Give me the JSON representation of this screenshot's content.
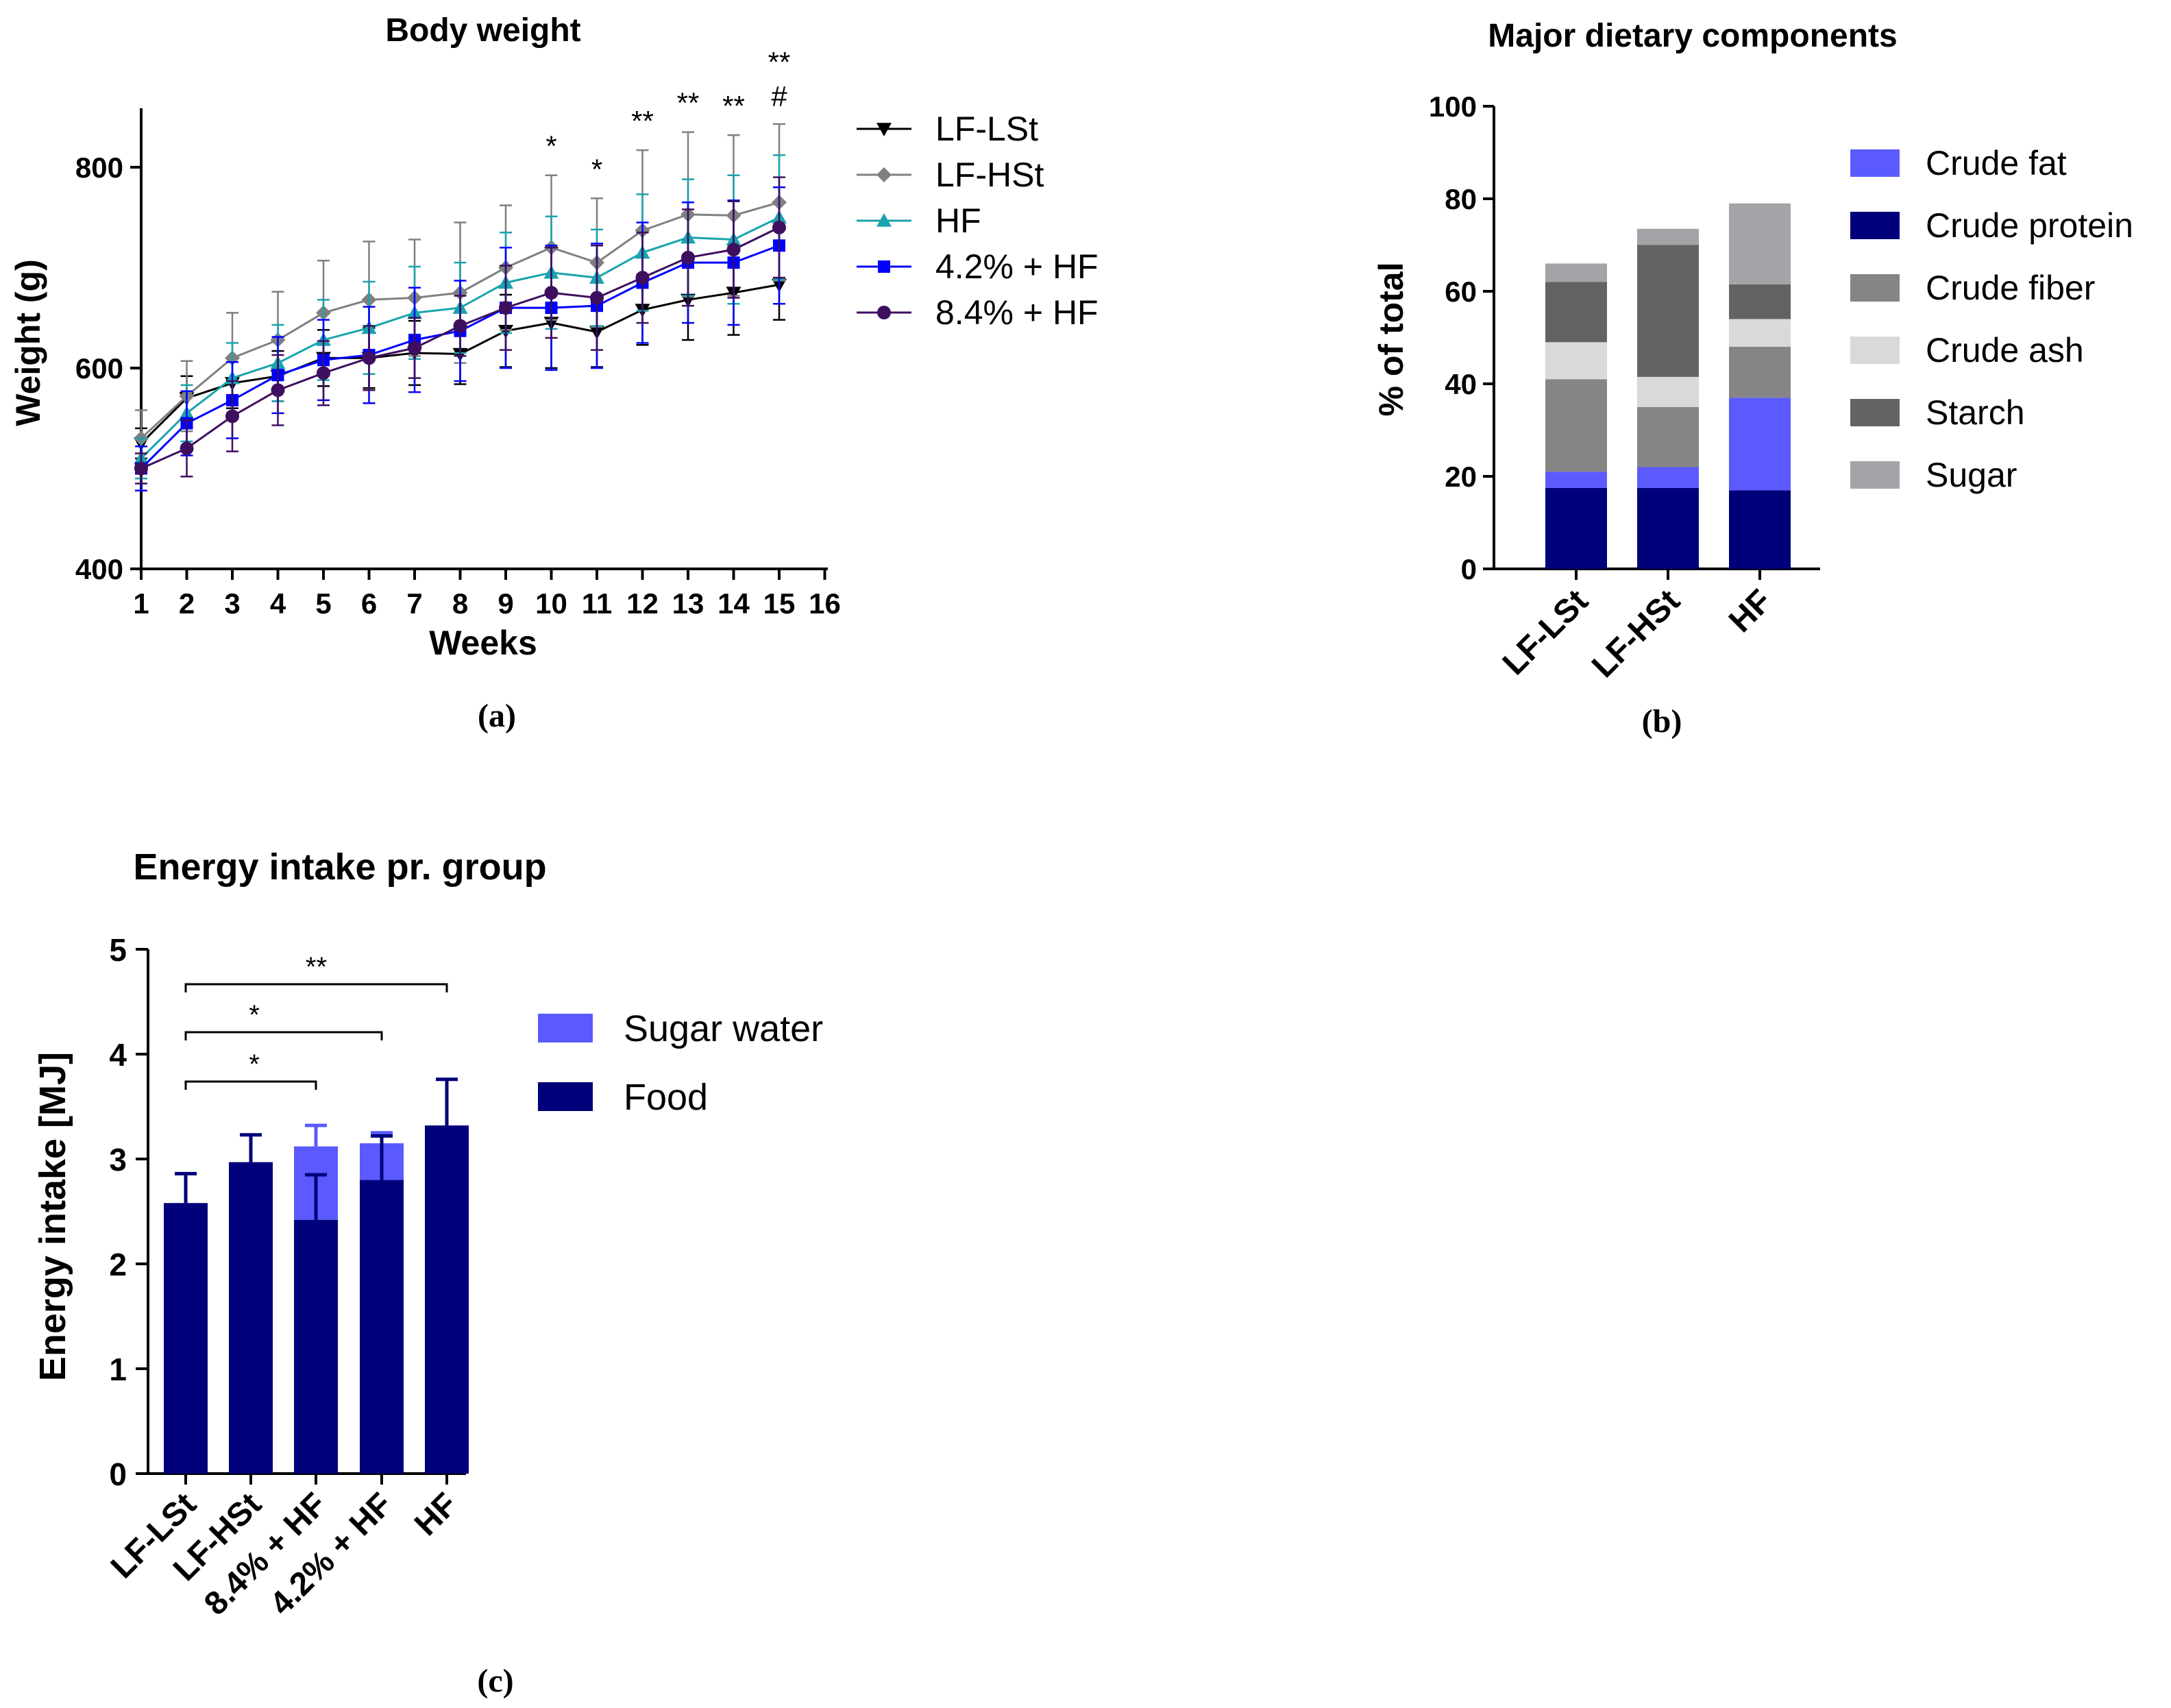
{
  "chart_data": [
    {
      "id": "a",
      "type": "line",
      "title": "Body weight",
      "xlabel": "Weeks",
      "ylabel": "Weight (g)",
      "caption": "(a)",
      "xlim": [
        1,
        16
      ],
      "ylim": [
        400,
        850
      ],
      "x_ticks": [
        "1",
        "2",
        "3",
        "4",
        "5",
        "6",
        "7",
        "8",
        "9",
        "10",
        "11",
        "12",
        "13",
        "14",
        "15",
        "16"
      ],
      "y_ticks": [
        "400",
        "600",
        "800"
      ],
      "x": [
        1,
        2,
        3,
        4,
        5,
        6,
        7,
        8,
        9,
        10,
        11,
        12,
        13,
        14,
        15
      ],
      "series": [
        {
          "name": "LF-LSt",
          "color": "#000000",
          "marker": "triangle-down",
          "values": [
            525,
            570,
            585,
            592,
            610,
            610,
            615,
            614,
            637,
            645,
            636,
            658,
            668,
            675,
            683
          ],
          "err": [
            15,
            22,
            25,
            25,
            28,
            30,
            32,
            30,
            36,
            45,
            35,
            35,
            40,
            42,
            35
          ]
        },
        {
          "name": "LF-HSt",
          "color": "#808080",
          "marker": "diamond",
          "values": [
            530,
            572,
            610,
            628,
            655,
            668,
            670,
            675,
            700,
            720,
            705,
            737,
            753,
            752,
            765
          ],
          "err": [
            28,
            35,
            45,
            48,
            52,
            58,
            58,
            70,
            62,
            72,
            64,
            80,
            82,
            80,
            78
          ]
        },
        {
          "name": "HF",
          "color": "#1aa3ae",
          "marker": "triangle-up",
          "values": [
            510,
            555,
            590,
            605,
            628,
            640,
            655,
            660,
            685,
            695,
            690,
            715,
            730,
            728,
            750
          ],
          "err": [
            20,
            28,
            35,
            38,
            40,
            46,
            46,
            45,
            50,
            56,
            48,
            58,
            58,
            64,
            62
          ]
        },
        {
          "name": "4.2% + HF",
          "color": "#0000ff",
          "marker": "square",
          "values": [
            500,
            545,
            568,
            593,
            608,
            613,
            628,
            637,
            660,
            660,
            662,
            685,
            705,
            705,
            722
          ],
          "err": [
            22,
            32,
            38,
            38,
            40,
            48,
            52,
            50,
            60,
            62,
            62,
            60,
            60,
            62,
            58
          ]
        },
        {
          "name": "8.4% + HF",
          "color": "#3f0f5f",
          "marker": "circle",
          "values": [
            500,
            520,
            552,
            578,
            595,
            610,
            620,
            642,
            660,
            675,
            670,
            690,
            710,
            718,
            740
          ],
          "err": [
            15,
            28,
            35,
            35,
            32,
            32,
            30,
            30,
            42,
            45,
            52,
            45,
            48,
            48,
            50
          ]
        }
      ],
      "annotations": [
        {
          "x": 10,
          "text": "*"
        },
        {
          "x": 11,
          "text": "*"
        },
        {
          "x": 12,
          "text": "**"
        },
        {
          "x": 13,
          "text": "**"
        },
        {
          "x": 14,
          "text": "**"
        },
        {
          "x": 15,
          "text": "**"
        },
        {
          "x": 15,
          "text": "#"
        }
      ]
    },
    {
      "id": "b",
      "type": "bar",
      "stacked": true,
      "title": "Major dietary components",
      "ylabel": "% of total",
      "caption": "(b)",
      "ylim": [
        0,
        100
      ],
      "y_ticks": [
        "0",
        "20",
        "40",
        "60",
        "80",
        "100"
      ],
      "categories": [
        "LF-LSt",
        "LF-HSt",
        "HF"
      ],
      "series": [
        {
          "name": "Crude fat",
          "color": "#5a5aff",
          "values": [
            3.5,
            4.5,
            20
          ]
        },
        {
          "name": "Crude protein",
          "color": "#00007a",
          "values": [
            17.5,
            17.5,
            17
          ]
        },
        {
          "name": "Crude fiber",
          "color": "#858585",
          "values": [
            20,
            13,
            11
          ]
        },
        {
          "name": "Crude ash",
          "color": "#d9d9d9",
          "values": [
            8,
            6.5,
            6
          ]
        },
        {
          "name": "Starch",
          "color": "#636363",
          "values": [
            13,
            28.5,
            7.5
          ]
        },
        {
          "name": "Sugar",
          "color": "#a3a3a8",
          "values": [
            4,
            3.5,
            17.5
          ]
        }
      ],
      "stack_order": [
        "Crude protein",
        "Crude fat",
        "Crude fiber",
        "Crude ash",
        "Starch",
        "Sugar"
      ]
    },
    {
      "id": "c",
      "type": "bar",
      "stacked": true,
      "title": "Energy intake pr. group",
      "ylabel": "Energy intake  [MJ]",
      "caption": "(c)",
      "ylim": [
        0,
        5
      ],
      "y_ticks": [
        "0",
        "1",
        "2",
        "3",
        "4",
        "5"
      ],
      "categories": [
        "LF-LSt",
        "LF-HSt",
        "8.4% + HF",
        "4.2% + HF",
        "HF"
      ],
      "series": [
        {
          "name": "Sugar water",
          "color": "#5a5aff",
          "values": [
            0,
            0,
            0.7,
            0.35,
            0
          ],
          "total_err": [
            0,
            0,
            0.2,
            0.1,
            0
          ]
        },
        {
          "name": "Food",
          "color": "#00007a",
          "values": [
            2.58,
            2.97,
            2.42,
            2.8,
            3.32
          ],
          "err": [
            0.28,
            0.26,
            0.43,
            0.42,
            0.44
          ]
        }
      ],
      "significance": [
        {
          "from": "LF-LSt",
          "to": "8.4% + HF",
          "text": "*"
        },
        {
          "from": "LF-LSt",
          "to": "4.2% + HF",
          "text": "*"
        },
        {
          "from": "LF-LSt",
          "to": "HF",
          "text": "**"
        }
      ]
    }
  ]
}
